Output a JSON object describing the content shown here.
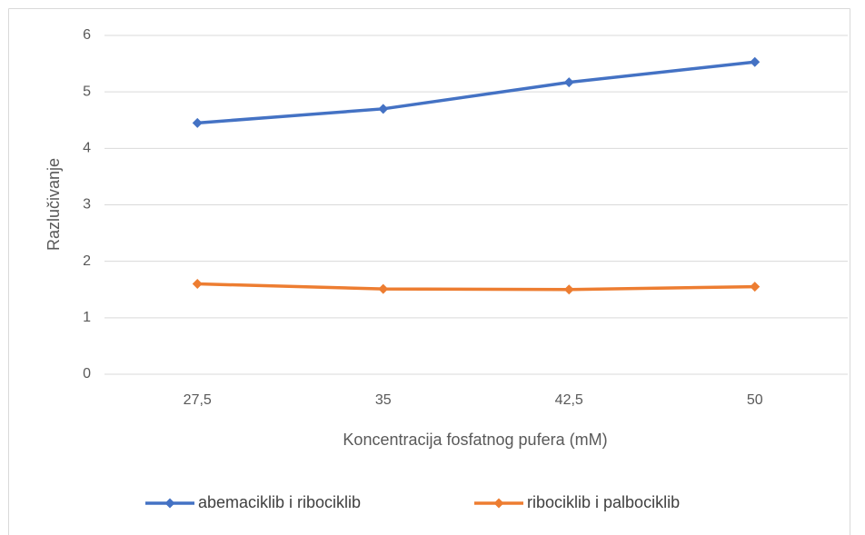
{
  "chart_data": {
    "type": "line",
    "xlabel": "Koncentracija fosfatnog pufera (mM)",
    "ylabel": "Razlučivanje",
    "categories": [
      "27,5",
      "35",
      "42,5",
      "50"
    ],
    "series": [
      {
        "name": "abemaciklib i ribociklib",
        "color": "#4472c4",
        "values": [
          4.45,
          4.7,
          5.17,
          5.53
        ]
      },
      {
        "name": "ribociklib i palbociklib",
        "color": "#ed7d31",
        "values": [
          1.6,
          1.51,
          1.5,
          1.55
        ]
      }
    ],
    "ylim": [
      0,
      6
    ],
    "yticks": [
      0,
      1,
      2,
      3,
      4,
      5,
      6
    ],
    "grid": true,
    "legend": "bottom"
  }
}
